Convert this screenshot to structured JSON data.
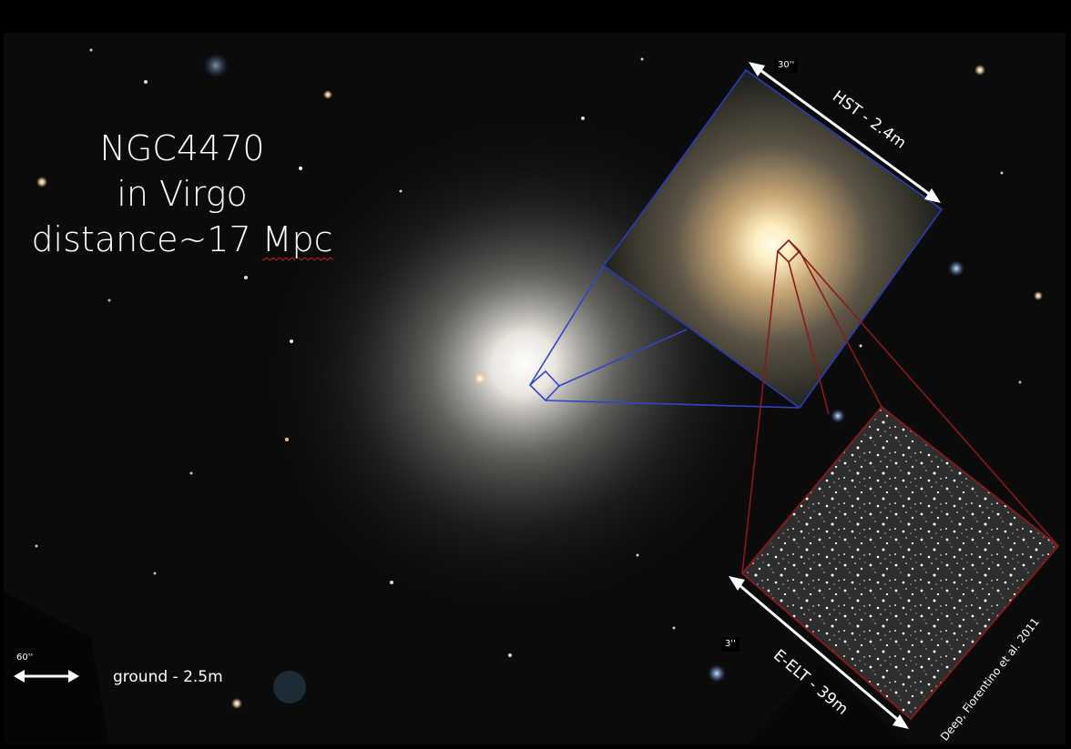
{
  "title": {
    "line1": "NGC4470",
    "line2": "in Virgo",
    "line3_prefix": "distance~17 ",
    "line3_unit": "Mpc"
  },
  "ground": {
    "scale_label": "60''",
    "label": "ground - 2.5m"
  },
  "hst": {
    "scale_label": "30''",
    "label": "HST - 2.4m",
    "frame_color": "#2a3aaa"
  },
  "elt": {
    "scale_label": "3''",
    "label": "E-ELT - 39m",
    "frame_color": "#8a1a1a"
  },
  "credit": "Deep, Fiorentino et al. 2011"
}
